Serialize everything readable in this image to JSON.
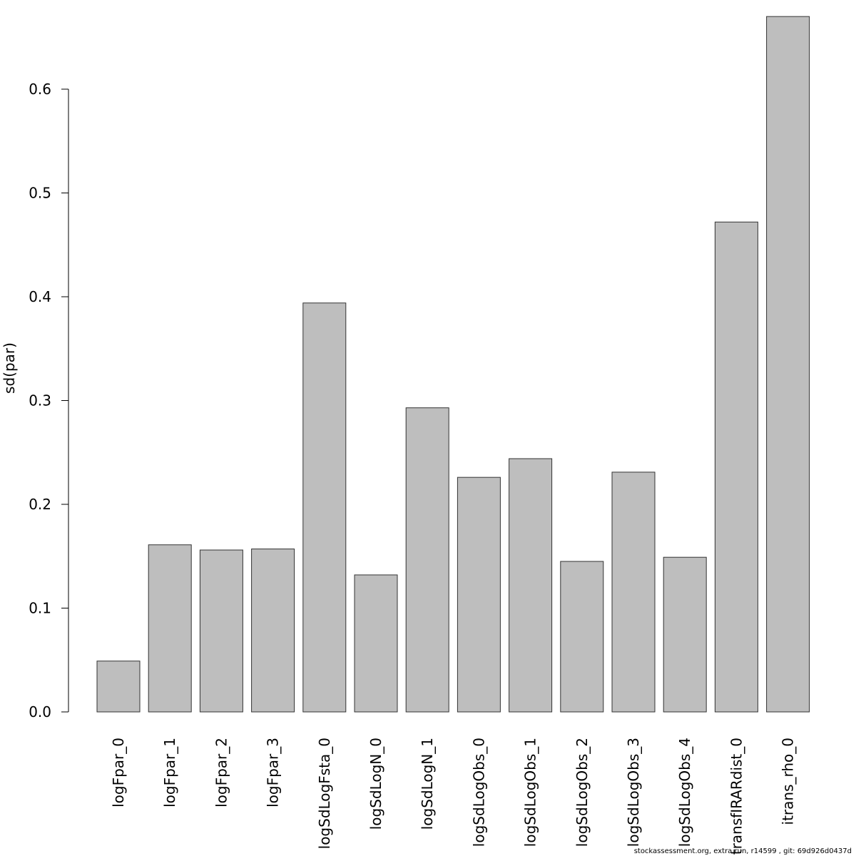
{
  "chart_data": {
    "type": "bar",
    "ylabel": "sd(par)",
    "ylim": [
      0,
      0.67
    ],
    "yticks": [
      "0.0",
      "0.1",
      "0.2",
      "0.3",
      "0.4",
      "0.5",
      "0.6"
    ],
    "yticks_values": [
      0,
      0.1,
      0.2,
      0.3,
      0.4,
      0.5,
      0.6
    ],
    "categories": [
      "logFpar_0",
      "logFpar_1",
      "logFpar_2",
      "logFpar_3",
      "logSdLogFsta_0",
      "logSdLogN_0",
      "logSdLogN_1",
      "logSdLogObs_0",
      "logSdLogObs_1",
      "logSdLogObs_2",
      "logSdLogObs_3",
      "logSdLogObs_4",
      "transfIRARdist_0",
      "itrans_rho_0"
    ],
    "values": [
      0.049,
      0.161,
      0.156,
      0.157,
      0.394,
      0.132,
      0.293,
      0.226,
      0.244,
      0.145,
      0.231,
      0.149,
      0.472,
      0.67
    ],
    "bar_color": "#bebebe",
    "grid": false,
    "legend": "none"
  },
  "footer": "stockassessment.org, extra run, r14599 , git: 69d926d0437d"
}
